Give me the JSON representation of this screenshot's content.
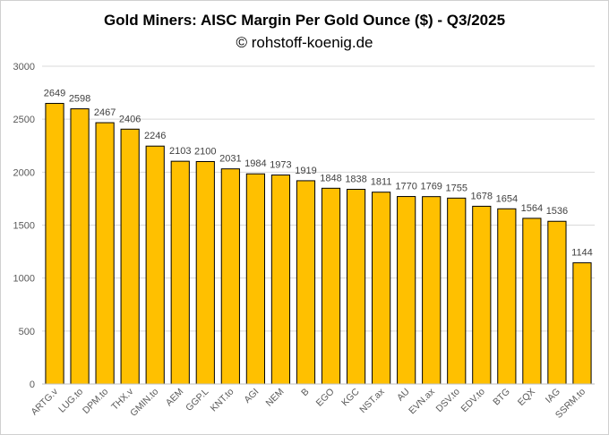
{
  "chart_data": {
    "type": "bar",
    "title": "Gold Miners: AISC Margin Per Gold Ounce ($) - Q3/2025",
    "subtitle": "© rohstoff-koenig.de",
    "xlabel": "",
    "ylabel": "",
    "ylim": [
      0,
      3000
    ],
    "yticks": [
      0,
      500,
      1000,
      1500,
      2000,
      2500,
      3000
    ],
    "grid": true,
    "legend": "none",
    "bar_color": "#ffc000",
    "bar_edge_color": "#000000",
    "categories": [
      "ARTG.v",
      "LUG.to",
      "DPM.to",
      "THX.v",
      "GMIN.to",
      "AEM",
      "GGP.L",
      "KNT.to",
      "AGI",
      "NEM",
      "B",
      "EGO",
      "KGC",
      "NST.ax",
      "AU",
      "EVN.ax",
      "DSV.to",
      "EDV.to",
      "BTG",
      "EQX",
      "IAG",
      "SSRM.to"
    ],
    "values": [
      2649,
      2598,
      2467,
      2406,
      2246,
      2103,
      2100,
      2031,
      1984,
      1973,
      1919,
      1848,
      1838,
      1811,
      1770,
      1769,
      1755,
      1678,
      1654,
      1564,
      1536,
      1144
    ]
  }
}
